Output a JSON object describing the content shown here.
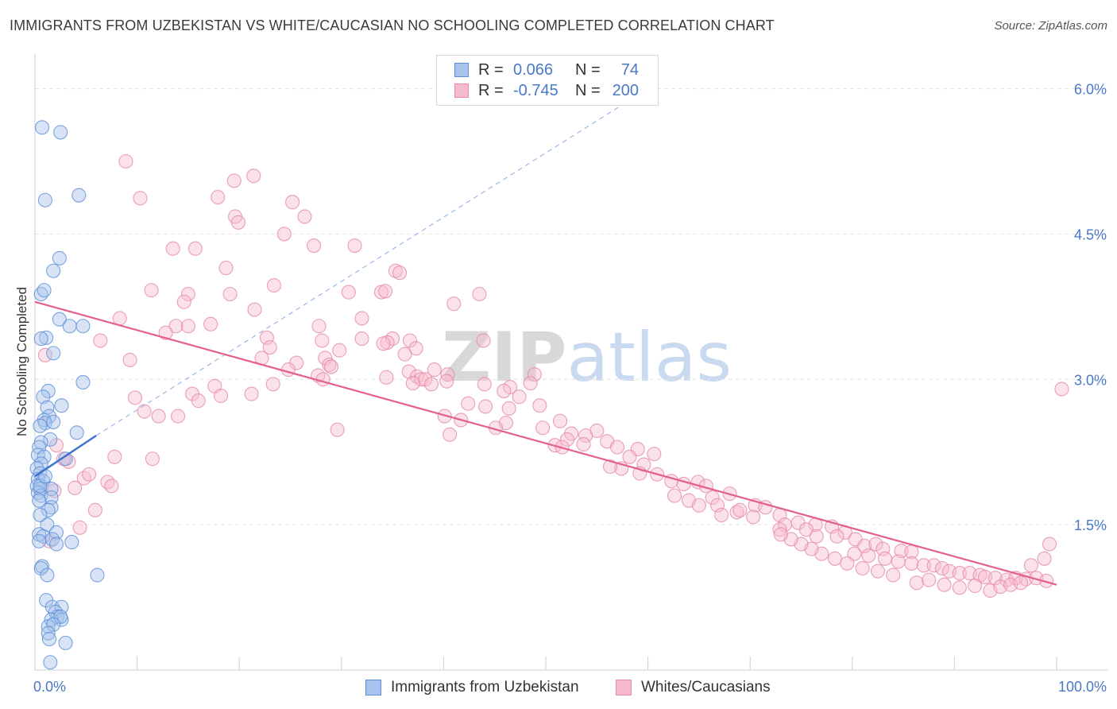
{
  "header": {
    "title": "IMMIGRANTS FROM UZBEKISTAN VS WHITE/CAUCASIAN NO SCHOOLING COMPLETED CORRELATION CHART",
    "source": "Source: ZipAtlas.com"
  },
  "watermark": {
    "zip": "ZIP",
    "atlas": "atlas"
  },
  "legend": {
    "rows": [
      {
        "r_label": "R =",
        "r_value": "0.066",
        "n_label": "N =",
        "n_value": "74",
        "color": "#a9c4ec",
        "border": "#5b8fd8"
      },
      {
        "r_label": "R =",
        "r_value": "-0.745",
        "n_label": "N =",
        "n_value": "200",
        "color": "#f6bccd",
        "border": "#e58aa8"
      }
    ]
  },
  "bottom_legend": {
    "items": [
      {
        "label": "Immigrants from Uzbekistan",
        "color": "#a9c4ec",
        "border": "#5b8fd8"
      },
      {
        "label": "Whites/Caucasians",
        "color": "#f6bccd",
        "border": "#e58aa8"
      }
    ]
  },
  "chart_data": {
    "type": "scatter",
    "title": "IMMIGRANTS FROM UZBEKISTAN VS WHITE/CAUCASIAN NO SCHOOLING COMPLETED CORRELATION CHART",
    "ylabel": "No Schooling Completed",
    "xlabel": "",
    "xlim": [
      0,
      100
    ],
    "ylim": [
      0,
      6.3
    ],
    "x_tick_labels": [
      "0.0%",
      "100.0%"
    ],
    "y_ticks": [
      1.5,
      3.0,
      4.5,
      6.0
    ],
    "y_tick_labels": [
      "1.5%",
      "3.0%",
      "4.5%",
      "6.0%"
    ],
    "grid": true,
    "legend_position": "top-center",
    "colors": {
      "blue": "#5b8fd8",
      "blue_fill": "#a9c4ec",
      "pink": "#e35f8d",
      "pink_fill": "#f6bccd",
      "tick_text": "#4a78c8"
    },
    "series": [
      {
        "name": "Immigrants from Uzbekistan",
        "trend": {
          "x": [
            0,
            6.0
          ],
          "y": [
            2.0,
            2.42
          ],
          "extended_to": [
            60,
            6.0
          ]
        },
        "points": [
          [
            0.7,
            5.6
          ],
          [
            2.5,
            5.55
          ],
          [
            1.0,
            4.85
          ],
          [
            4.3,
            4.9
          ],
          [
            2.4,
            4.25
          ],
          [
            1.8,
            4.12
          ],
          [
            0.6,
            3.88
          ],
          [
            0.9,
            3.92
          ],
          [
            2.4,
            3.62
          ],
          [
            3.4,
            3.55
          ],
          [
            4.7,
            3.55
          ],
          [
            1.1,
            3.43
          ],
          [
            0.6,
            3.42
          ],
          [
            1.8,
            3.27
          ],
          [
            4.7,
            2.97
          ],
          [
            1.3,
            2.88
          ],
          [
            0.8,
            2.82
          ],
          [
            2.6,
            2.73
          ],
          [
            1.2,
            2.71
          ],
          [
            1.4,
            2.62
          ],
          [
            0.9,
            2.58
          ],
          [
            1.0,
            2.55
          ],
          [
            1.8,
            2.56
          ],
          [
            0.5,
            2.52
          ],
          [
            4.1,
            2.45
          ],
          [
            1.5,
            2.38
          ],
          [
            0.6,
            2.35
          ],
          [
            0.4,
            2.3
          ],
          [
            0.3,
            2.22
          ],
          [
            0.9,
            2.2
          ],
          [
            3.0,
            2.18
          ],
          [
            0.6,
            2.13
          ],
          [
            0.2,
            2.08
          ],
          [
            0.5,
            2.03
          ],
          [
            0.3,
            1.97
          ],
          [
            0.8,
            1.95
          ],
          [
            0.2,
            1.9
          ],
          [
            0.5,
            1.87
          ],
          [
            1.6,
            1.87
          ],
          [
            0.3,
            1.83
          ],
          [
            0.6,
            1.8
          ],
          [
            1.6,
            1.78
          ],
          [
            0.4,
            1.75
          ],
          [
            1.6,
            1.68
          ],
          [
            1.3,
            1.65
          ],
          [
            0.5,
            1.6
          ],
          [
            1.2,
            1.5
          ],
          [
            2.1,
            1.42
          ],
          [
            0.4,
            1.4
          ],
          [
            0.8,
            1.38
          ],
          [
            1.7,
            1.35
          ],
          [
            0.4,
            1.33
          ],
          [
            3.6,
            1.32
          ],
          [
            2.1,
            1.3
          ],
          [
            0.7,
            1.07
          ],
          [
            0.6,
            1.05
          ],
          [
            1.2,
            0.98
          ],
          [
            6.1,
            0.98
          ],
          [
            1.1,
            0.72
          ],
          [
            1.7,
            0.65
          ],
          [
            2.6,
            0.65
          ],
          [
            2.0,
            0.6
          ],
          [
            2.2,
            0.55
          ],
          [
            2.6,
            0.52
          ],
          [
            1.6,
            0.52
          ],
          [
            2.5,
            0.55
          ],
          [
            1.3,
            0.45
          ],
          [
            1.8,
            0.47
          ],
          [
            1.3,
            0.38
          ],
          [
            1.4,
            0.32
          ],
          [
            3.0,
            0.28
          ],
          [
            1.5,
            0.08
          ],
          [
            0.5,
            1.9
          ],
          [
            1.0,
            2.0
          ]
        ]
      },
      {
        "name": "Whites/Caucasians",
        "trend": {
          "x": [
            0,
            100
          ],
          "y": [
            3.8,
            0.88
          ]
        },
        "points": [
          [
            8.9,
            5.25
          ],
          [
            21.4,
            5.1
          ],
          [
            19.5,
            5.05
          ],
          [
            17.9,
            4.88
          ],
          [
            10.3,
            4.87
          ],
          [
            25.2,
            4.83
          ],
          [
            19.6,
            4.68
          ],
          [
            26.4,
            4.68
          ],
          [
            19.9,
            4.62
          ],
          [
            24.4,
            4.5
          ],
          [
            13.5,
            4.35
          ],
          [
            27.3,
            4.38
          ],
          [
            31.3,
            4.38
          ],
          [
            15.7,
            4.35
          ],
          [
            18.7,
            4.15
          ],
          [
            35.3,
            4.12
          ],
          [
            35.7,
            4.1
          ],
          [
            23.4,
            3.97
          ],
          [
            11.4,
            3.92
          ],
          [
            15.0,
            3.88
          ],
          [
            19.1,
            3.88
          ],
          [
            30.7,
            3.9
          ],
          [
            33.9,
            3.9
          ],
          [
            34.3,
            3.91
          ],
          [
            43.5,
            3.88
          ],
          [
            41.0,
            3.78
          ],
          [
            14.6,
            3.8
          ],
          [
            21.5,
            3.72
          ],
          [
            8.3,
            3.63
          ],
          [
            17.2,
            3.57
          ],
          [
            27.8,
            3.55
          ],
          [
            13.8,
            3.55
          ],
          [
            15.0,
            3.55
          ],
          [
            12.8,
            3.48
          ],
          [
            32.0,
            3.63
          ],
          [
            28.1,
            3.4
          ],
          [
            35.0,
            3.42
          ],
          [
            6.4,
            3.4
          ],
          [
            22.7,
            3.43
          ],
          [
            32.0,
            3.42
          ],
          [
            34.5,
            3.38
          ],
          [
            34.1,
            3.37
          ],
          [
            23.0,
            3.33
          ],
          [
            29.8,
            3.3
          ],
          [
            36.7,
            3.4
          ],
          [
            43.9,
            3.4
          ],
          [
            37.3,
            3.32
          ],
          [
            36.2,
            3.26
          ],
          [
            9.3,
            3.2
          ],
          [
            22.2,
            3.22
          ],
          [
            28.4,
            3.22
          ],
          [
            25.6,
            3.17
          ],
          [
            28.8,
            3.15
          ],
          [
            29.0,
            3.13
          ],
          [
            24.8,
            3.1
          ],
          [
            27.7,
            3.04
          ],
          [
            39.1,
            3.1
          ],
          [
            40.4,
            3.05
          ],
          [
            28.2,
            3.0
          ],
          [
            34.4,
            3.02
          ],
          [
            36.6,
            3.08
          ],
          [
            37.4,
            3.03
          ],
          [
            37.8,
            3.0
          ],
          [
            38.2,
            3.0
          ],
          [
            48.9,
            3.05
          ],
          [
            23.3,
            2.95
          ],
          [
            37.0,
            2.96
          ],
          [
            38.8,
            2.95
          ],
          [
            40.3,
            2.98
          ],
          [
            44.0,
            2.95
          ],
          [
            46.5,
            2.92
          ],
          [
            48.5,
            2.96
          ],
          [
            17.6,
            2.93
          ],
          [
            15.4,
            2.85
          ],
          [
            18.2,
            2.83
          ],
          [
            21.2,
            2.85
          ],
          [
            45.9,
            2.88
          ],
          [
            47.4,
            2.82
          ],
          [
            9.8,
            2.81
          ],
          [
            16.0,
            2.78
          ],
          [
            42.4,
            2.75
          ],
          [
            44.1,
            2.72
          ],
          [
            49.4,
            2.73
          ],
          [
            46.4,
            2.7
          ],
          [
            10.7,
            2.67
          ],
          [
            12.1,
            2.62
          ],
          [
            14.0,
            2.62
          ],
          [
            40.1,
            2.62
          ],
          [
            41.7,
            2.58
          ],
          [
            46.1,
            2.55
          ],
          [
            51.4,
            2.57
          ],
          [
            29.6,
            2.48
          ],
          [
            40.6,
            2.43
          ],
          [
            45.1,
            2.5
          ],
          [
            49.7,
            2.5
          ],
          [
            52.5,
            2.44
          ],
          [
            55.0,
            2.47
          ],
          [
            53.9,
            2.42
          ],
          [
            52.1,
            2.38
          ],
          [
            56.0,
            2.36
          ],
          [
            50.9,
            2.32
          ],
          [
            51.6,
            2.3
          ],
          [
            53.7,
            2.33
          ],
          [
            57.0,
            2.3
          ],
          [
            59.0,
            2.28
          ],
          [
            60.6,
            2.23
          ],
          [
            58.2,
            2.2
          ],
          [
            59.6,
            2.12
          ],
          [
            57.4,
            2.08
          ],
          [
            56.3,
            2.1
          ],
          [
            59.2,
            2.03
          ],
          [
            60.9,
            2.02
          ],
          [
            62.3,
            1.95
          ],
          [
            63.5,
            1.92
          ],
          [
            64.9,
            1.94
          ],
          [
            65.7,
            1.9
          ],
          [
            62.6,
            1.8
          ],
          [
            64.0,
            1.75
          ],
          [
            65.0,
            1.7
          ],
          [
            66.3,
            1.78
          ],
          [
            68.0,
            1.82
          ],
          [
            66.8,
            1.7
          ],
          [
            68.7,
            1.63
          ],
          [
            67.2,
            1.6
          ],
          [
            69.0,
            1.65
          ],
          [
            70.5,
            1.7
          ],
          [
            71.5,
            1.68
          ],
          [
            70.3,
            1.58
          ],
          [
            72.9,
            1.6
          ],
          [
            73.4,
            1.5
          ],
          [
            74.7,
            1.52
          ],
          [
            76.4,
            1.5
          ],
          [
            78.0,
            1.48
          ],
          [
            79.3,
            1.42
          ],
          [
            75.5,
            1.45
          ],
          [
            72.9,
            1.45
          ],
          [
            76.5,
            1.38
          ],
          [
            78.5,
            1.38
          ],
          [
            80.3,
            1.35
          ],
          [
            81.2,
            1.28
          ],
          [
            82.3,
            1.3
          ],
          [
            83.0,
            1.25
          ],
          [
            84.8,
            1.23
          ],
          [
            85.8,
            1.22
          ],
          [
            80.2,
            1.2
          ],
          [
            81.6,
            1.18
          ],
          [
            83.2,
            1.15
          ],
          [
            84.5,
            1.12
          ],
          [
            85.8,
            1.1
          ],
          [
            87.0,
            1.08
          ],
          [
            88.0,
            1.08
          ],
          [
            88.8,
            1.05
          ],
          [
            89.5,
            1.02
          ],
          [
            90.5,
            1.0
          ],
          [
            91.5,
            1.0
          ],
          [
            92.5,
            0.98
          ],
          [
            93.0,
            0.96
          ],
          [
            94.0,
            0.95
          ],
          [
            95.1,
            0.93
          ],
          [
            96.0,
            0.95
          ],
          [
            97.0,
            0.94
          ],
          [
            98.0,
            0.95
          ],
          [
            99.0,
            0.92
          ],
          [
            97.5,
            1.08
          ],
          [
            98.8,
            1.15
          ],
          [
            99.3,
            1.3
          ],
          [
            100.5,
            2.9
          ],
          [
            86.3,
            0.9
          ],
          [
            87.5,
            0.93
          ],
          [
            89.0,
            0.88
          ],
          [
            90.5,
            0.85
          ],
          [
            92.0,
            0.87
          ],
          [
            93.5,
            0.82
          ],
          [
            94.5,
            0.86
          ],
          [
            95.5,
            0.88
          ],
          [
            96.5,
            0.9
          ],
          [
            84.0,
            0.98
          ],
          [
            82.5,
            1.02
          ],
          [
            81.0,
            1.05
          ],
          [
            79.5,
            1.1
          ],
          [
            78.3,
            1.15
          ],
          [
            77.0,
            1.2
          ],
          [
            76.0,
            1.25
          ],
          [
            75.0,
            1.3
          ],
          [
            74.0,
            1.35
          ],
          [
            73.0,
            1.4
          ],
          [
            2.1,
            2.32
          ],
          [
            3.3,
            2.15
          ],
          [
            4.8,
            1.98
          ],
          [
            5.3,
            2.02
          ],
          [
            7.1,
            1.94
          ],
          [
            7.5,
            1.9
          ],
          [
            1.9,
            1.85
          ],
          [
            3.9,
            1.88
          ],
          [
            7.8,
            2.2
          ],
          [
            1.4,
            1.33
          ],
          [
            4.4,
            1.47
          ],
          [
            5.9,
            1.65
          ],
          [
            1.0,
            3.25
          ],
          [
            11.5,
            2.18
          ],
          [
            2.8,
            2.18
          ]
        ]
      }
    ]
  }
}
